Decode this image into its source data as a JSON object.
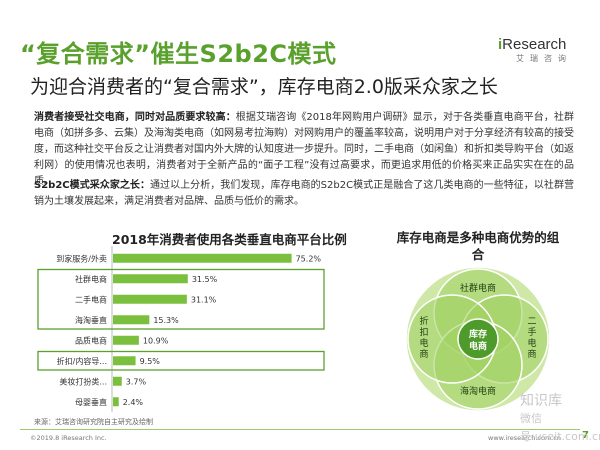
{
  "header": {
    "title": "“复合需求”催生S2b2C模式",
    "subtitle": "为迎合消费者的“复合需求”，库存电商2.0版采众家之长",
    "logo_text": "iResearch",
    "logo_sub": "艾瑞咨询"
  },
  "paragraph1": {
    "bold": "消费者接受社交电商，同时对品质要求较高：",
    "text": "根据艾瑞咨询《2018年网购用户调研》显示，对于各类垂直电商平台，社群电商（如拼多多、云集）及海淘类电商（如网易考拉海购）对网购用户的覆盖率较高，说明用户对于分享经济有较高的接受度，而这种社交平台反之让消费者对国内外大牌的认知度进一步提升。同时，二手电商（如闲鱼）和折扣类导购平台（如返利网）的使用情况也表明，消费者对于全新产品的“面子工程”没有过高要求，而更追求用低的价格买来正品实实在在的品质。"
  },
  "paragraph2": {
    "bold": "S2b2C模式采众家之长：",
    "text": "通过以上分析，我们发现，库存电商的S2b2C模式正是融合了这几类电商的一些特征，以社群营销为土壤发展起来，满足消费者对品牌、品质与低价的需求。"
  },
  "chart_data": {
    "type": "bar",
    "orientation": "horizontal",
    "title": "2018年消费者使用各类垂直电商平台比例",
    "categories": [
      "到家服务/外卖",
      "社群电商",
      "二手电商",
      "海淘垂直",
      "品质电商",
      "折扣/内容导...",
      "美妆打扮类...",
      "母婴垂直"
    ],
    "values": [
      75.2,
      31.5,
      31.1,
      15.3,
      10.9,
      9.5,
      3.7,
      2.4
    ],
    "value_labels": [
      "75.2%",
      "31.5%",
      "31.1%",
      "15.3%",
      "10.9%",
      "9.5%",
      "3.7%",
      "2.4%"
    ],
    "highlighted": [
      1,
      2,
      3,
      5
    ],
    "xlim": [
      0,
      80
    ],
    "bar_color": "#7bbf3e",
    "highlight_color": "#5aa02c"
  },
  "venn": {
    "title": "库存电商是多种电商优势的组合",
    "center": "库存电商",
    "segments": {
      "top": "社群电商",
      "right": "二手电商",
      "bottom": "海淘电商",
      "left": "折扣电商"
    },
    "colors": [
      "#cfe8a8",
      "#9fd05f",
      "#6cb33a",
      "#4e9a2a"
    ]
  },
  "source": "来源：艾瑞咨询研究院自主研究及绘制",
  "footer": {
    "copyright": "©2019.8 iResearch Inc.",
    "website": "www.iresearch.com.cn",
    "page": "7"
  },
  "watermark": {
    "main": "知识库",
    "sub": "微信号:useit.com.cn"
  }
}
